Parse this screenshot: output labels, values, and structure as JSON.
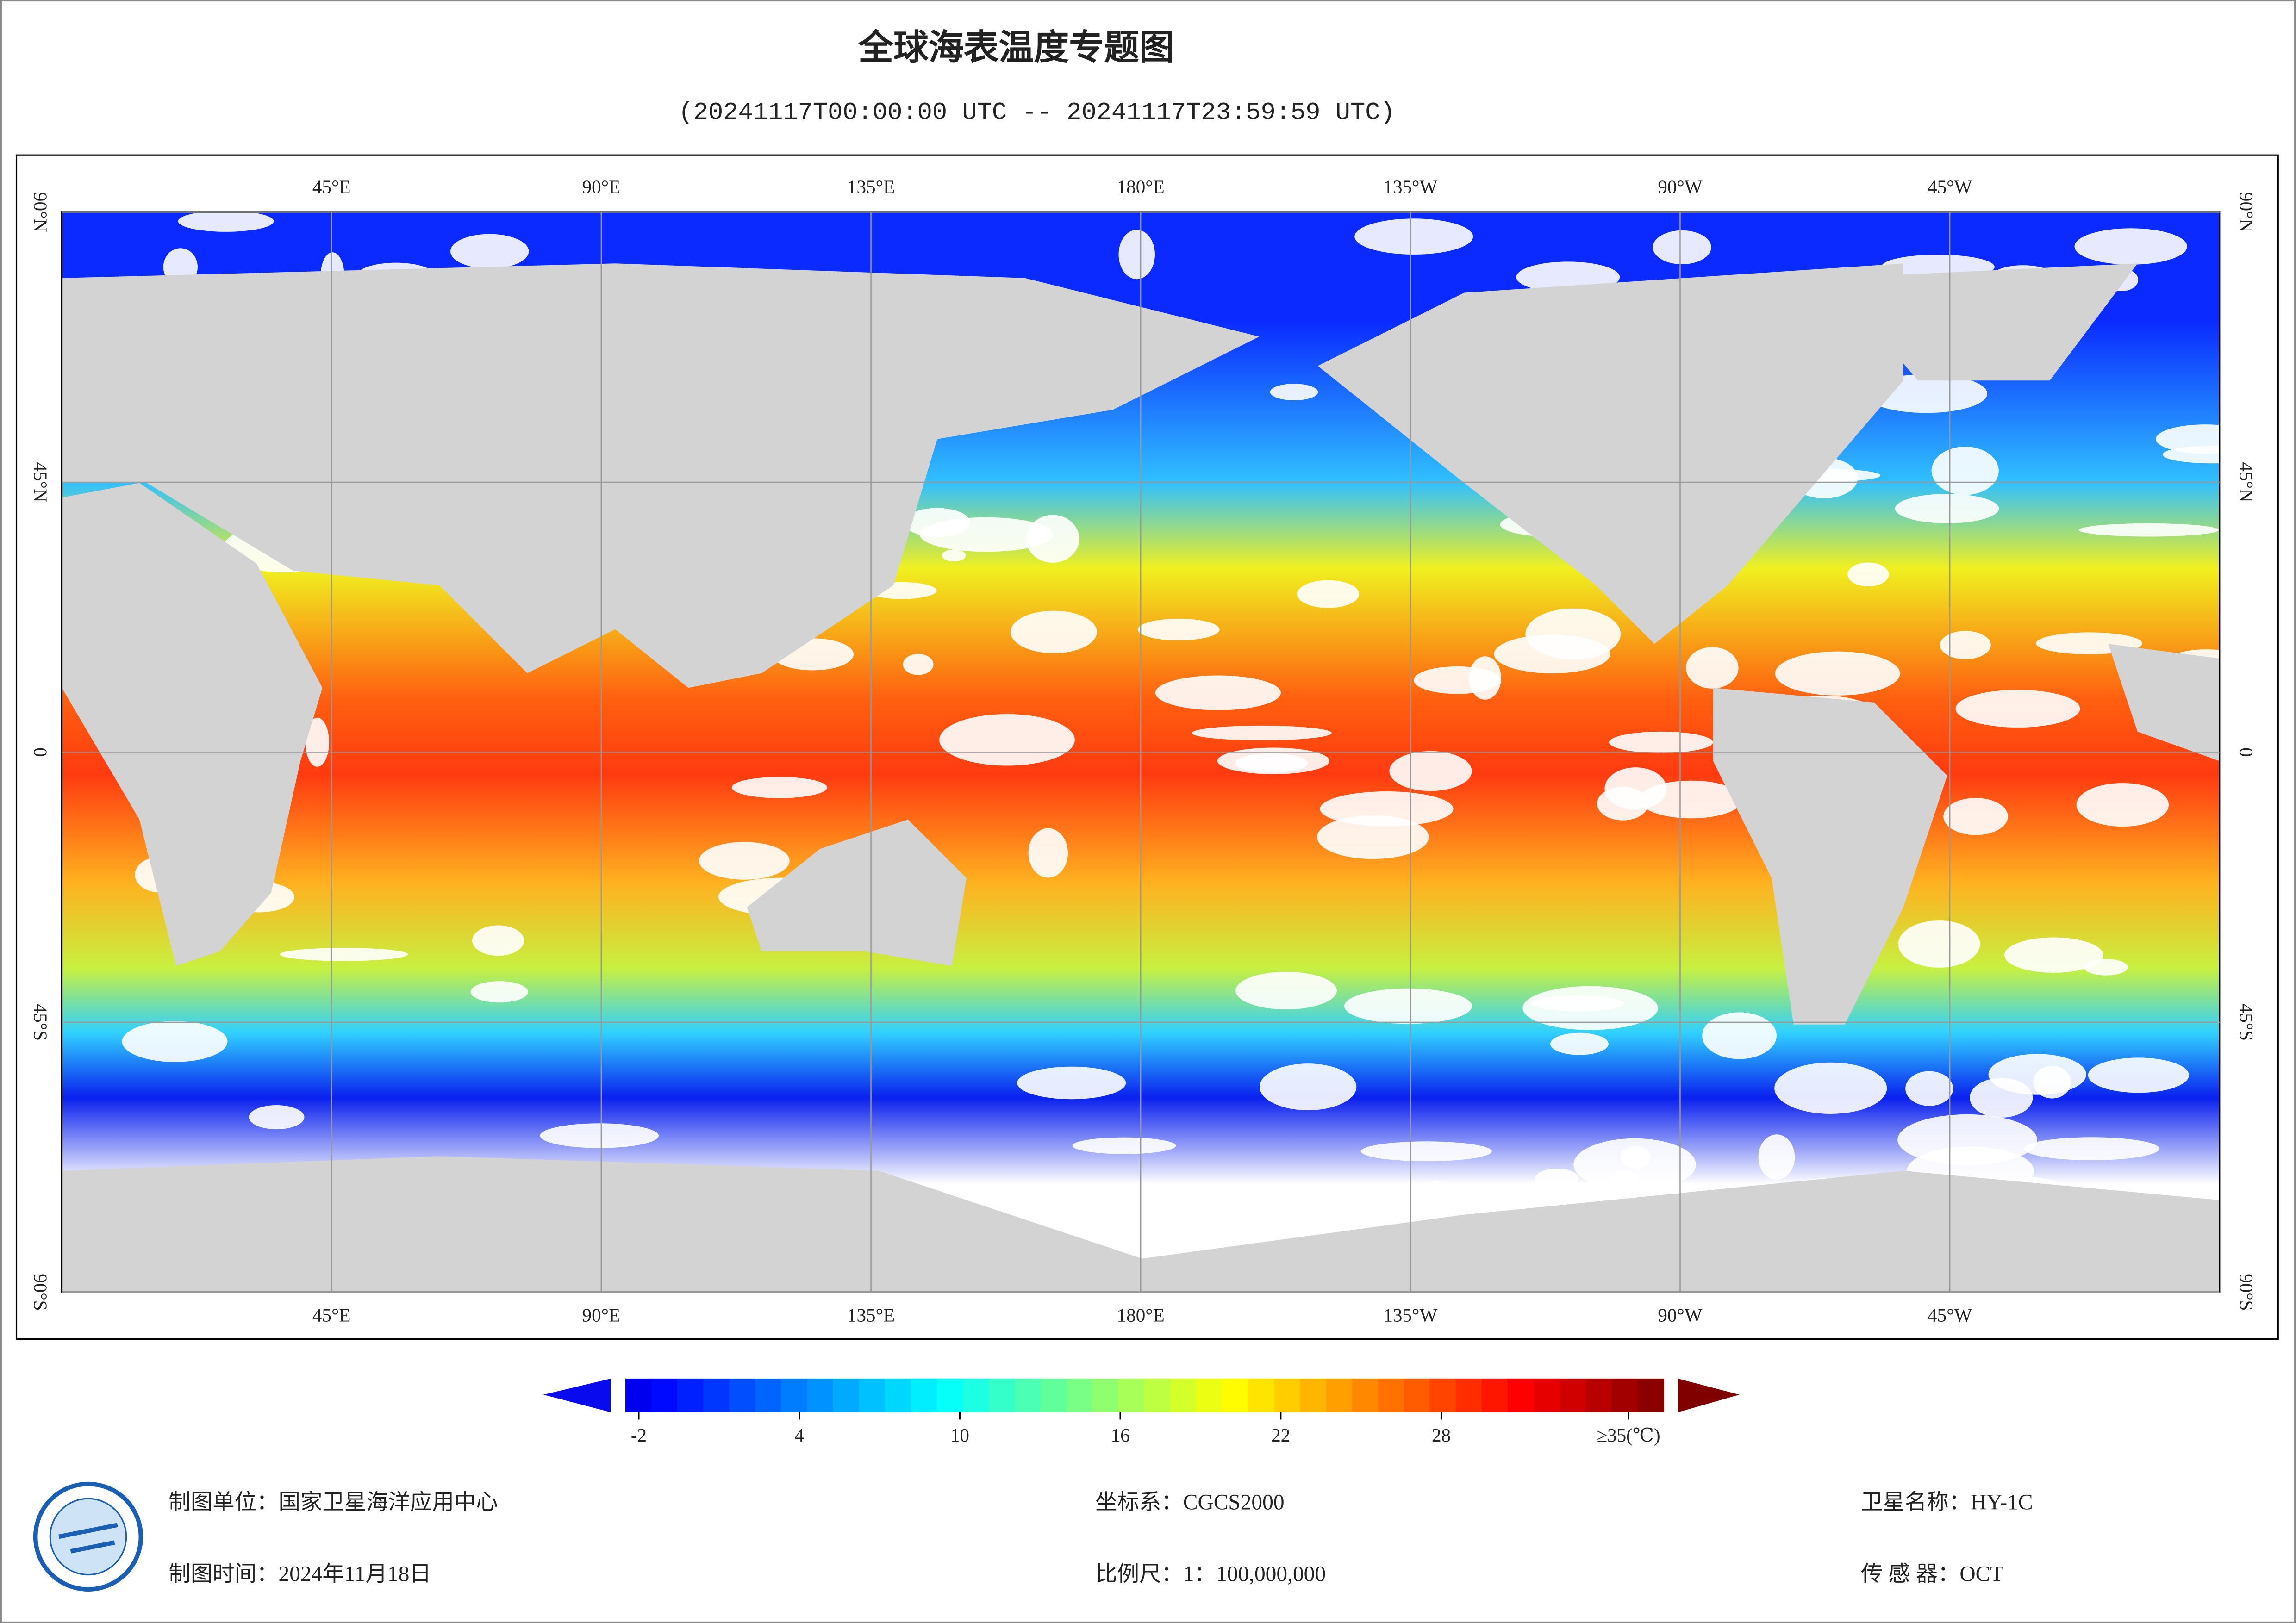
{
  "header": {
    "title": "全球海表温度专题图",
    "subtitle": "(20241117T00:00:00 UTC -- 20241117T23:59:59 UTC)"
  },
  "map": {
    "lon_range": [
      0,
      360
    ],
    "lat_range": [
      -90,
      90
    ],
    "grid": true,
    "lon_ticks": [
      {
        "value": 45,
        "label": "45°E"
      },
      {
        "value": 90,
        "label": "90°E"
      },
      {
        "value": 135,
        "label": "135°E"
      },
      {
        "value": 180,
        "label": "180°E"
      },
      {
        "value": 225,
        "label": "135°W"
      },
      {
        "value": 270,
        "label": "90°W"
      },
      {
        "value": 315,
        "label": "45°W"
      }
    ],
    "lat_ticks": [
      {
        "value": 90,
        "label": "90°N"
      },
      {
        "value": 45,
        "label": "45°N"
      },
      {
        "value": 0,
        "label": "0"
      },
      {
        "value": -45,
        "label": "45°S"
      },
      {
        "value": -90,
        "label": "90°S"
      }
    ]
  },
  "colorbar": {
    "range": [
      -2.5,
      36.3
    ],
    "ticks": [
      -2,
      4,
      10,
      16,
      22,
      28,
      {
        "value": 35,
        "label": "≥35(℃)"
      }
    ]
  },
  "footer": {
    "unit": "制图单位：国家卫星海洋应用中心",
    "date": "制图时间：2024年11月18日",
    "crs": "坐标系：CGCS2000",
    "scale": "比例尺：1：100,000,000",
    "satellite": "卫星名称：HY-1C",
    "sensor": "传 感 器：OCT"
  }
}
